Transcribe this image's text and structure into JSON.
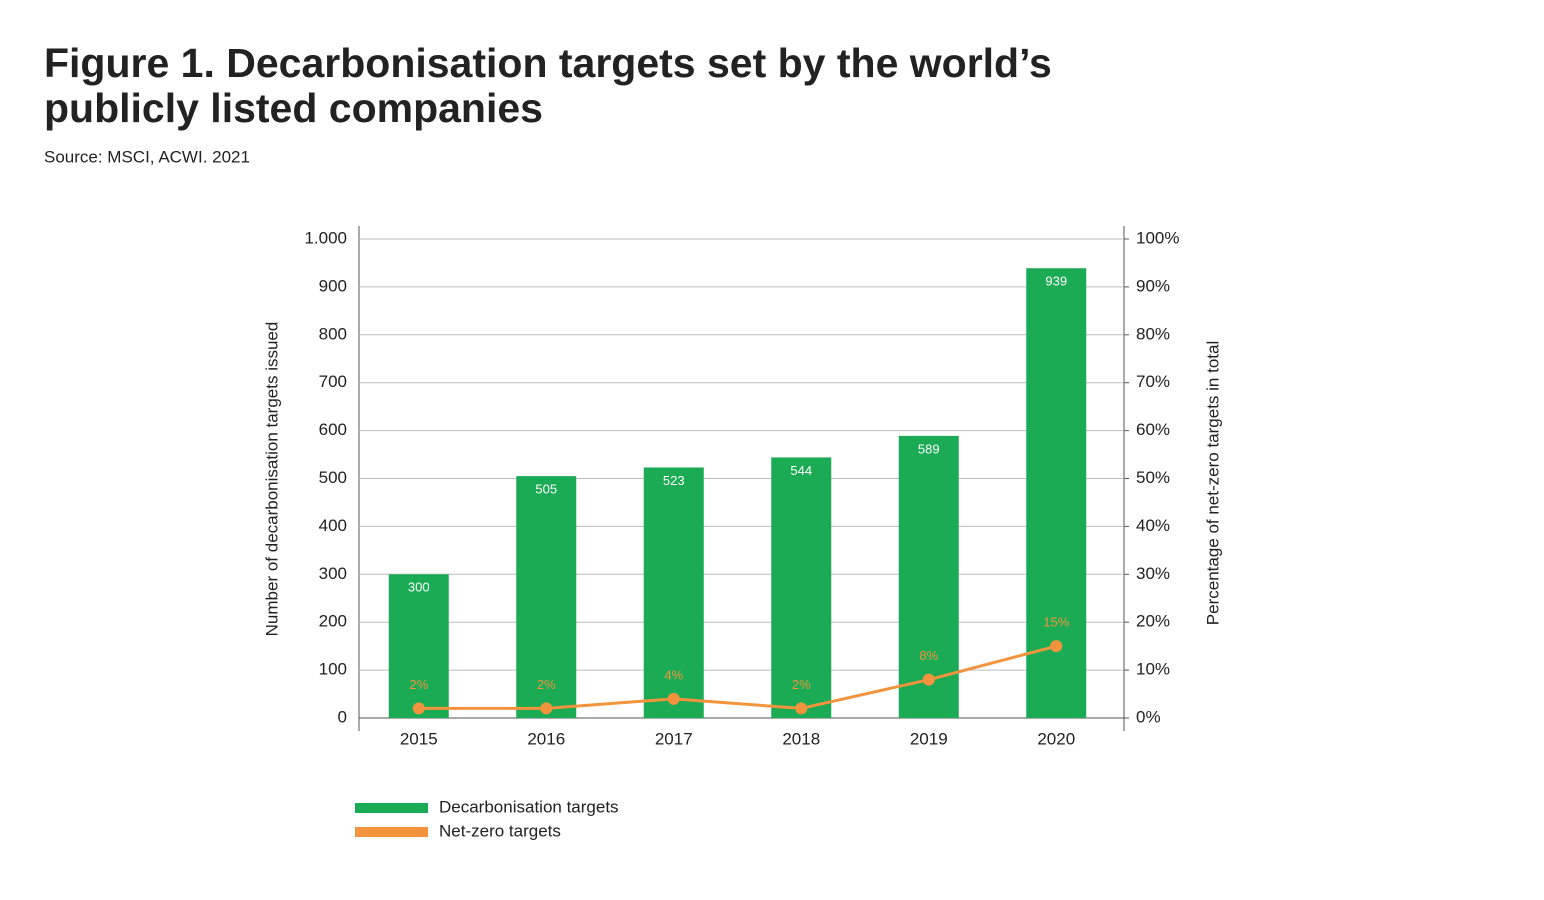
{
  "chart_data": {
    "type": "bar",
    "title": "Figure 1. Decarbonisation targets set by the world’s",
    "title_line2": "publicly listed companies",
    "subtitle": "Source: MSCI, ACWI. 2021",
    "ylabel": "Number of decarbonisation targets issued",
    "y2label": "Percentage of net-zero targets in total",
    "categories": [
      "2015",
      "2016",
      "2017",
      "2018",
      "2019",
      "2020"
    ],
    "series": [
      {
        "name": "Decarbonisation targets",
        "color": "#1aab54",
        "values": [
          300,
          505,
          523,
          544,
          589,
          939
        ]
      },
      {
        "name": "Net-zero targets",
        "color": "#f2943e",
        "type": "line",
        "axis": "y2",
        "values": [
          2,
          2,
          4,
          2,
          8,
          15
        ],
        "value_labels": [
          "2%",
          "2%",
          "4%",
          "2%",
          "8%",
          "15%"
        ]
      }
    ],
    "ylim": [
      0,
      1000
    ],
    "yticks": [
      0,
      100,
      200,
      300,
      400,
      500,
      600,
      700,
      800,
      900,
      {
        "value": 1000,
        "label": "1.000"
      }
    ],
    "y2lim": [
      0,
      100
    ],
    "y2ticks": [
      {
        "value": 0,
        "label": "0%"
      },
      {
        "value": 10,
        "label": "10%"
      },
      {
        "value": 20,
        "label": "20%"
      },
      {
        "value": 30,
        "label": "30%"
      },
      {
        "value": 40,
        "label": "40%"
      },
      {
        "value": 50,
        "label": "50%"
      },
      {
        "value": 60,
        "label": "60%"
      },
      {
        "value": 70,
        "label": "70%"
      },
      {
        "value": 80,
        "label": "80%"
      },
      {
        "value": 90,
        "label": "90%"
      },
      {
        "value": 100,
        "label": "100%"
      }
    ],
    "grid": true,
    "legend": "bottom-left"
  }
}
